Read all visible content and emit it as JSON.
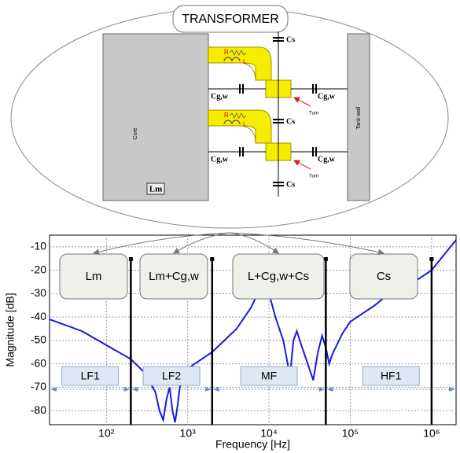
{
  "diagram": {
    "title": "TRANSFORMER",
    "core": "Core",
    "lm": "Lm",
    "tank_wall": "Tank wall",
    "coil_labels": [
      "R",
      "L",
      "R",
      "L"
    ],
    "cs_labels": [
      "Cs",
      "Cs",
      "Cs"
    ],
    "cgw_labels": [
      "Cg,w",
      "Cg,w",
      "Cg,w",
      "Cg,w"
    ],
    "turn_labels": [
      "Turn",
      "Turn"
    ]
  },
  "chart_data": {
    "type": "line",
    "xlabel": "Frequency [Hz]",
    "ylabel": "Magnitude [dB]",
    "xscale": "log",
    "grid": true,
    "color": "#1a1adc",
    "xlim": [
      20,
      2000000
    ],
    "ylim": [
      -86,
      -5
    ],
    "xticks": [
      {
        "value": 100,
        "label": "10²"
      },
      {
        "value": 1000,
        "label": "10³"
      },
      {
        "value": 10000,
        "label": "10⁴"
      },
      {
        "value": 100000,
        "label": "10⁵"
      },
      {
        "value": 1000000,
        "label": "10⁶"
      }
    ],
    "yticks": [
      -10,
      -20,
      -30,
      -40,
      -50,
      -60,
      -70,
      -80
    ],
    "x": [
      20,
      50,
      100,
      200,
      300,
      400,
      450,
      500,
      550,
      600,
      650,
      700,
      750,
      800,
      1000,
      2000,
      4000,
      6000,
      8000,
      9000,
      10000,
      12000,
      15000,
      17000,
      18000,
      20000,
      22000,
      25000,
      30000,
      35000,
      40000,
      45000,
      50000,
      55000,
      60000,
      80000,
      100000,
      200000,
      300000,
      500000,
      1000000,
      2000000
    ],
    "values": [
      -41,
      -46,
      -52,
      -58,
      -64,
      -72,
      -80,
      -84,
      -75,
      -70,
      -80,
      -85,
      -78,
      -70,
      -62,
      -55,
      -45,
      -36,
      -27,
      -26,
      -30,
      -40,
      -50,
      -60,
      -66,
      -50,
      -46,
      -52,
      -60,
      -67,
      -55,
      -48,
      -53,
      -60,
      -56,
      -47,
      -42,
      -35,
      -30,
      -27,
      -20,
      -7
    ],
    "boundaries": [
      200,
      2000,
      50000,
      1000000
    ],
    "circuits": [
      "Lm",
      "Lm+Cg,w",
      "L+Cg,w+Cs",
      "Cs"
    ],
    "bands": [
      "LF1",
      "LF2",
      "MF",
      "HF1"
    ]
  }
}
